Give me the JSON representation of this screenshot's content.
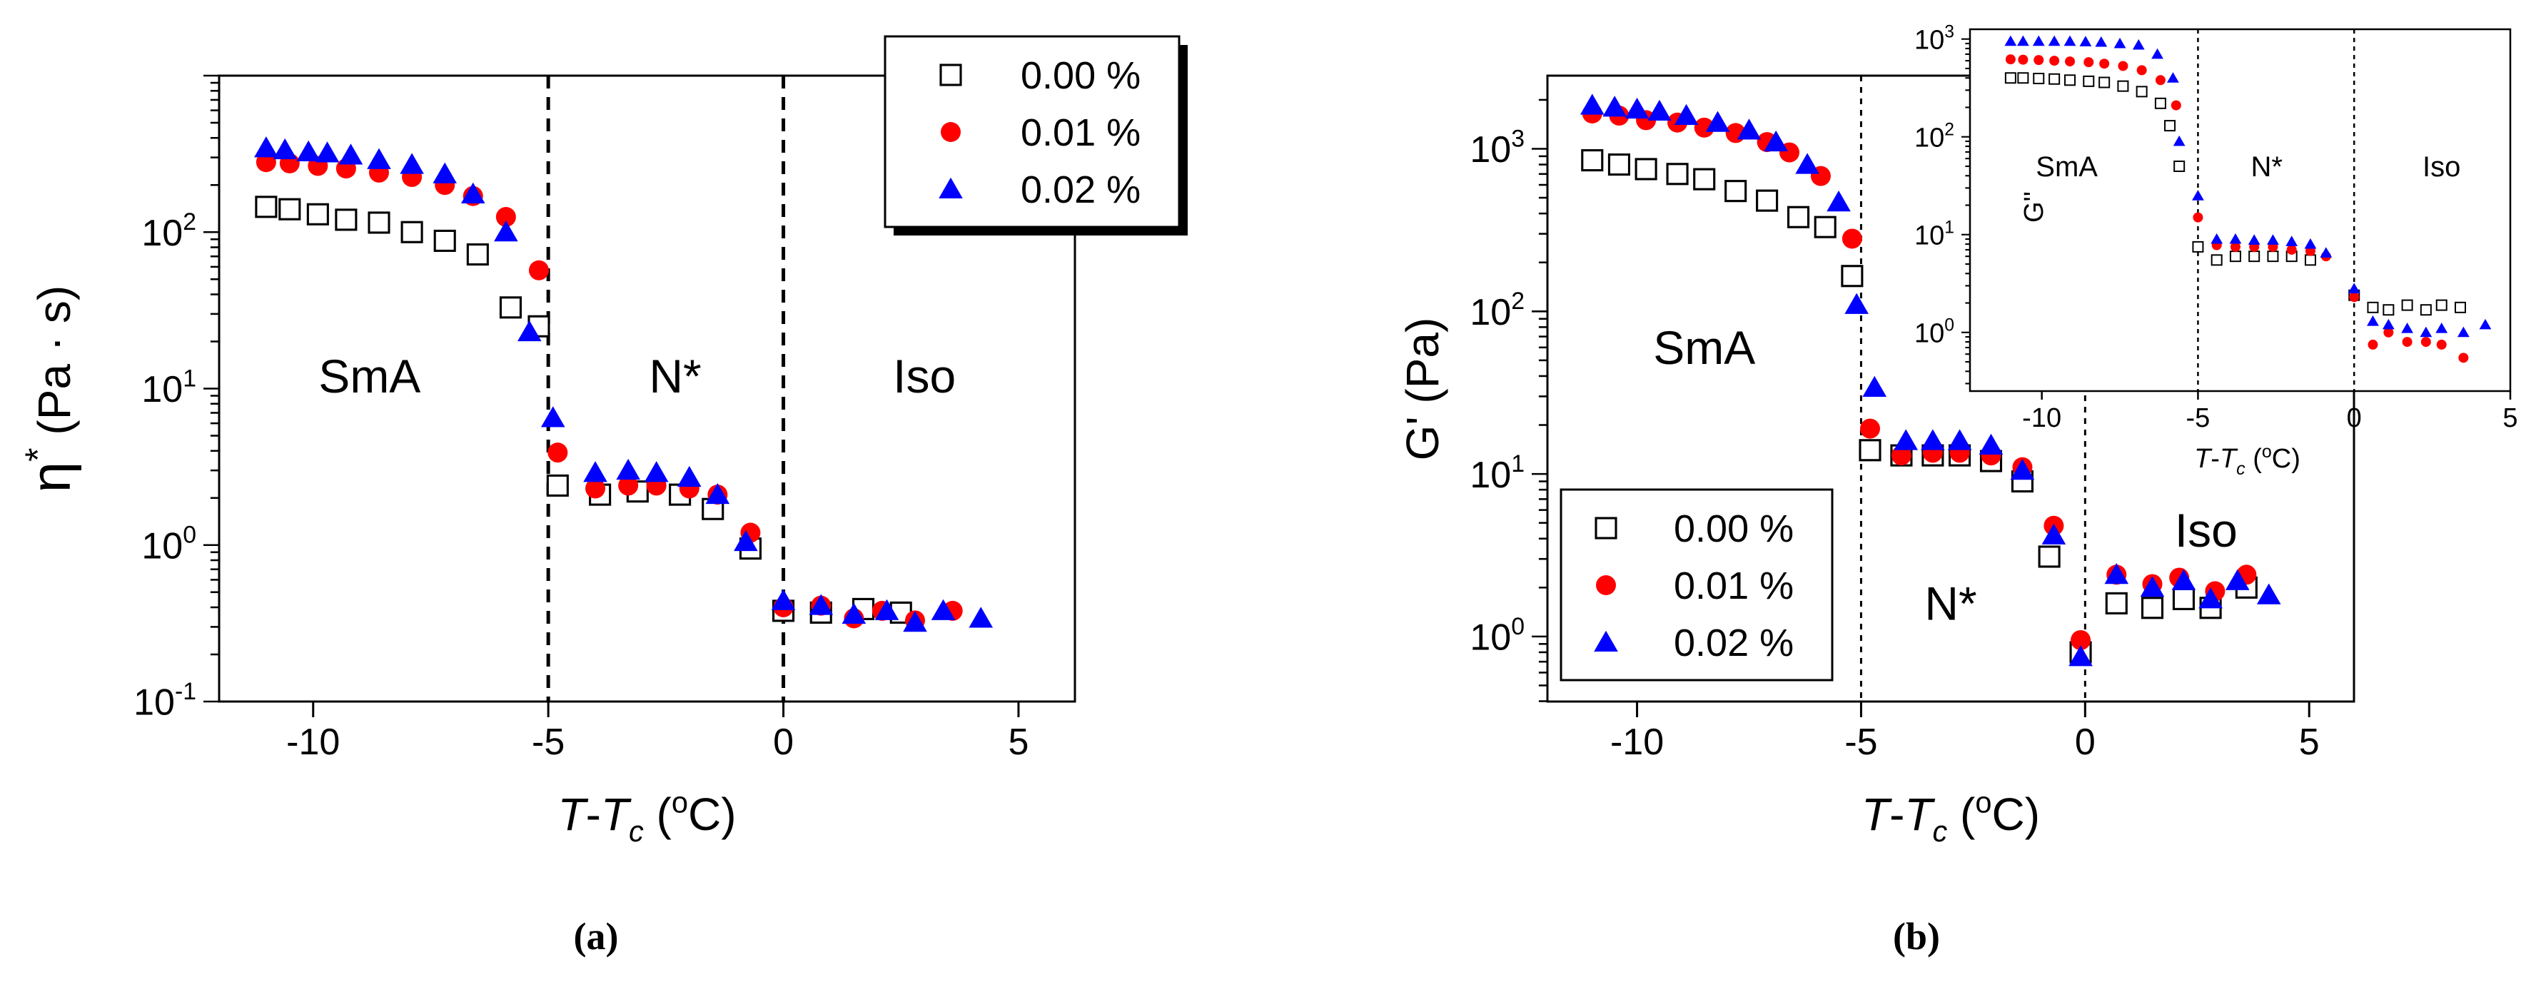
{
  "chart_data": [
    {
      "id": "panel-a",
      "type": "scatter",
      "caption": "(a)",
      "xlabel": "T-Tc (°C)",
      "ylabel": "η* (Pa · s)",
      "xlim": [
        -12,
        6.2
      ],
      "ylim_log10": [
        -1,
        3
      ],
      "yscale": "log",
      "xticks": [
        -10,
        -5,
        0,
        5
      ],
      "xtick_labels": [
        "-10",
        "-5",
        "0",
        "5"
      ],
      "yticks_log10": [
        -1,
        0,
        1,
        2
      ],
      "ytick_labels": [
        {
          "base": "10",
          "exp": "-1"
        },
        {
          "base": "10",
          "exp": "0"
        },
        {
          "base": "10",
          "exp": "1"
        },
        {
          "base": "10",
          "exp": "2"
        }
      ],
      "vlines": [
        -5,
        0
      ],
      "phase_labels": [
        {
          "text": "SmA",
          "x": -8.8,
          "y": 12
        },
        {
          "text": "N*",
          "x": -2.3,
          "y": 12
        },
        {
          "text": "Iso",
          "x": 3.0,
          "y": 12
        }
      ],
      "legend_position": "top-right",
      "series": [
        {
          "name": "0.00 %",
          "marker": "square-open",
          "color": "#000000",
          "x": [
            -11,
            -10.5,
            -9.9,
            -9.3,
            -8.6,
            -7.9,
            -7.2,
            -6.5,
            -5.8,
            -5.2,
            -4.8,
            -3.9,
            -3.1,
            -2.2,
            -1.5,
            -0.7,
            0,
            0.8,
            1.7,
            2.5
          ],
          "y": [
            145,
            140,
            130,
            120,
            115,
            100,
            88,
            72,
            33,
            25,
            2.4,
            2.1,
            2.2,
            2.1,
            1.7,
            0.95,
            0.38,
            0.37,
            0.39,
            0.37
          ]
        },
        {
          "name": "0.01 %",
          "marker": "circle",
          "color": "#ff0000",
          "x": [
            -11,
            -10.5,
            -9.9,
            -9.3,
            -8.6,
            -7.9,
            -7.2,
            -6.6,
            -5.9,
            -5.2,
            -4.8,
            -4.0,
            -3.3,
            -2.7,
            -2.0,
            -1.4,
            -0.7,
            0,
            0.8,
            1.5,
            2.1,
            2.8,
            3.6
          ],
          "y": [
            280,
            275,
            265,
            255,
            240,
            225,
            200,
            170,
            125,
            57,
            3.9,
            2.3,
            2.4,
            2.4,
            2.3,
            2.1,
            1.2,
            0.4,
            0.41,
            0.34,
            0.38,
            0.33,
            0.38
          ]
        },
        {
          "name": "0.02 %",
          "marker": "triangle",
          "color": "#0000ff",
          "x": [
            -11,
            -10.6,
            -10.1,
            -9.7,
            -9.2,
            -8.6,
            -7.9,
            -7.2,
            -6.6,
            -5.9,
            -5.4,
            -4.9,
            -4.0,
            -3.3,
            -2.7,
            -2.0,
            -1.4,
            -0.8,
            0,
            0.8,
            1.5,
            2.2,
            2.8,
            3.4,
            4.2
          ],
          "y": [
            345,
            335,
            325,
            320,
            310,
            290,
            270,
            235,
            175,
            100,
            23,
            6.5,
            2.9,
            3.0,
            2.9,
            2.7,
            2.1,
            1.05,
            0.44,
            0.41,
            0.36,
            0.38,
            0.32,
            0.38,
            0.34
          ]
        }
      ]
    },
    {
      "id": "panel-b",
      "type": "scatter",
      "caption": "(b)",
      "xlabel": "T-Tc (°C)",
      "ylabel": "G' (Pa)",
      "xlim": [
        -12,
        6
      ],
      "ylim_log10": [
        -0.4,
        3.45
      ],
      "yscale": "log",
      "xticks": [
        -10,
        -5,
        0,
        5
      ],
      "xtick_labels": [
        "-10",
        "-5",
        "0",
        "5"
      ],
      "yticks_log10": [
        0,
        1,
        2,
        3
      ],
      "ytick_labels": [
        {
          "base": "10",
          "exp": "0"
        },
        {
          "base": "10",
          "exp": "1"
        },
        {
          "base": "10",
          "exp": "2"
        },
        {
          "base": "10",
          "exp": "3"
        }
      ],
      "vlines": [
        -5,
        0
      ],
      "phase_labels": [
        {
          "text": "SmA",
          "x": -8.5,
          "y": 60
        },
        {
          "text": "N*",
          "x": -3.0,
          "y": 1.6
        },
        {
          "text": "Iso",
          "x": 2.7,
          "y": 4.5
        }
      ],
      "legend_position": "bottom-left",
      "series": [
        {
          "name": "0.00 %",
          "marker": "square-open",
          "color": "#000000",
          "x": [
            -11,
            -10.4,
            -9.8,
            -9.1,
            -8.5,
            -7.8,
            -7.1,
            -6.4,
            -5.8,
            -5.2,
            -4.8,
            -4.1,
            -3.4,
            -2.8,
            -2.1,
            -1.4,
            -0.8,
            -0.1,
            0.7,
            1.5,
            2.2,
            2.8,
            3.6
          ],
          "y": [
            850,
            800,
            750,
            700,
            650,
            550,
            480,
            380,
            330,
            165,
            14,
            13,
            13,
            13,
            12,
            9,
            3.1,
            0.8,
            1.6,
            1.5,
            1.7,
            1.5,
            2.0
          ]
        },
        {
          "name": "0.01 %",
          "marker": "circle",
          "color": "#ff0000",
          "x": [
            -11,
            -10.4,
            -9.8,
            -9.1,
            -8.5,
            -7.8,
            -7.1,
            -6.6,
            -5.9,
            -5.2,
            -4.8,
            -4.1,
            -3.4,
            -2.8,
            -2.1,
            -1.4,
            -0.7,
            -0.1,
            0.7,
            1.5,
            2.1,
            2.9,
            3.6
          ],
          "y": [
            1650,
            1600,
            1500,
            1450,
            1350,
            1250,
            1100,
            950,
            680,
            280,
            19,
            13,
            13.5,
            13.5,
            13,
            11,
            4.8,
            0.95,
            2.4,
            2.1,
            2.3,
            1.9,
            2.4
          ]
        },
        {
          "name": "0.02 %",
          "marker": "triangle",
          "color": "#0000ff",
          "x": [
            -11,
            -10.5,
            -10,
            -9.5,
            -8.9,
            -8.2,
            -7.5,
            -6.9,
            -6.2,
            -5.5,
            -5.1,
            -4.7,
            -4.0,
            -3.4,
            -2.8,
            -2.1,
            -1.4,
            -0.7,
            -0.1,
            0.7,
            1.5,
            2.2,
            2.8,
            3.4,
            4.1
          ],
          "y": [
            1850,
            1800,
            1750,
            1700,
            1600,
            1450,
            1300,
            1100,
            800,
            470,
            110,
            34,
            16,
            16,
            16,
            15,
            10.5,
            4.2,
            0.75,
            2.4,
            2.0,
            2.2,
            1.7,
            2.2,
            1.8
          ]
        }
      ],
      "inset": {
        "type": "scatter",
        "xlabel": "T-Tc (°C)",
        "ylabel": "G''",
        "xlim": [
          -12.3,
          5
        ],
        "ylim_log10": [
          -0.6,
          3.1
        ],
        "yscale": "log",
        "xticks": [
          -10,
          -5,
          0,
          5
        ],
        "xtick_labels": [
          "-10",
          "-5",
          "0",
          "5"
        ],
        "yticks_log10": [
          0,
          1,
          2,
          3
        ],
        "ytick_labels": [
          {
            "base": "10",
            "exp": "0"
          },
          {
            "base": "10",
            "exp": "1"
          },
          {
            "base": "10",
            "exp": "2"
          },
          {
            "base": "10",
            "exp": "3"
          }
        ],
        "vlines": [
          -5,
          0
        ],
        "phase_labels": [
          {
            "text": "SmA",
            "x": -9.2,
            "y": 50
          },
          {
            "text": "N*",
            "x": -2.8,
            "y": 50
          },
          {
            "text": "Iso",
            "x": 2.8,
            "y": 50
          }
        ],
        "series": [
          {
            "name": "0.00 %",
            "marker": "square-open",
            "color": "#000000",
            "x": [
              -11,
              -10.6,
              -10.1,
              -9.6,
              -9.1,
              -8.5,
              -8.0,
              -7.4,
              -6.8,
              -6.2,
              -5.9,
              -5.6,
              -5.0,
              -4.4,
              -3.8,
              -3.2,
              -2.6,
              -2.0,
              -1.4,
              0,
              0.6,
              1.1,
              1.7,
              2.3,
              2.8,
              3.4
            ],
            "y": [
              400,
              400,
              395,
              390,
              380,
              370,
              360,
              330,
              290,
              220,
              130,
              50,
              7.5,
              5.5,
              6,
              6,
              6,
              6,
              5.5,
              2.4,
              1.8,
              1.7,
              1.9,
              1.7,
              1.9,
              1.8
            ]
          },
          {
            "name": "0.01 %",
            "marker": "circle",
            "color": "#ff0000",
            "x": [
              -11,
              -10.6,
              -10.1,
              -9.6,
              -9.1,
              -8.5,
              -8.0,
              -7.4,
              -6.8,
              -6.2,
              -5.7,
              -5.0,
              -4.4,
              -3.8,
              -3.2,
              -2.6,
              -2.0,
              -1.4,
              -0.9,
              0,
              0.6,
              1.1,
              1.7,
              2.3,
              2.8,
              3.5
            ],
            "y": [
              620,
              615,
              610,
              600,
              590,
              580,
              560,
              530,
              480,
              380,
              210,
              15,
              7.8,
              7.5,
              7.5,
              7.5,
              7,
              6.8,
              6,
              2.3,
              0.75,
              1.0,
              0.8,
              0.8,
              0.75,
              0.55
            ]
          },
          {
            "name": "0.02 %",
            "marker": "triangle",
            "color": "#0000ff",
            "x": [
              -11,
              -10.6,
              -10.1,
              -9.6,
              -9.1,
              -8.6,
              -8.1,
              -7.5,
              -6.9,
              -6.3,
              -5.8,
              -5.6,
              -5.0,
              -4.4,
              -3.8,
              -3.2,
              -2.6,
              -2.0,
              -1.4,
              -0.9,
              0,
              0.6,
              1.1,
              1.7,
              2.3,
              2.8,
              3.5,
              4.2
            ],
            "y": [
              950,
              950,
              950,
              950,
              950,
              940,
              930,
              900,
              870,
              700,
              400,
              90,
              25,
              9,
              9,
              8.8,
              8.8,
              8.5,
              8,
              6.5,
              2.8,
              1.3,
              1.2,
              1.1,
              1.0,
              1.1,
              1.0,
              1.2
            ]
          }
        ]
      }
    }
  ]
}
